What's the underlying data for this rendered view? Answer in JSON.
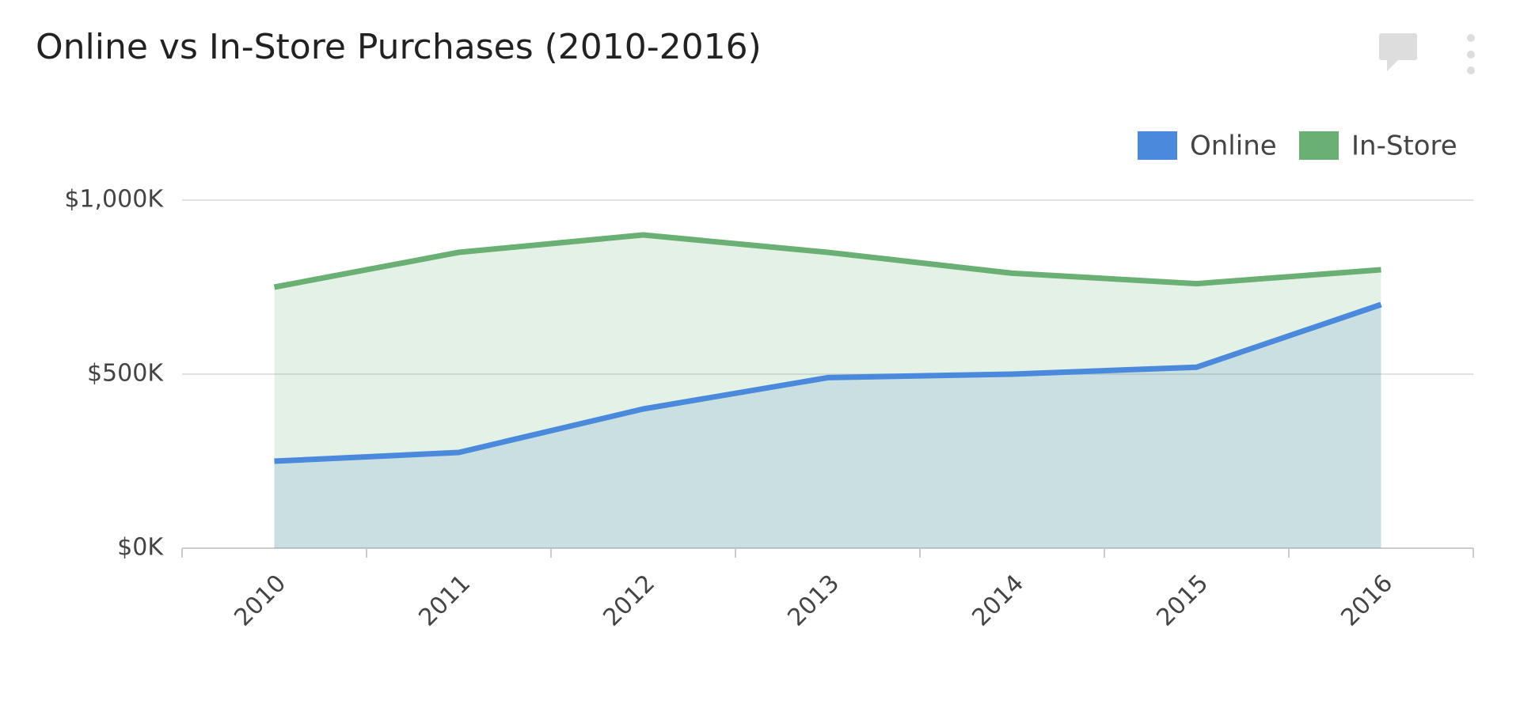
{
  "chart_data": {
    "type": "area",
    "title": "Online vs In-Store Purchases (2010-2016)",
    "categories": [
      "2010",
      "2011",
      "2012",
      "2013",
      "2014",
      "2015",
      "2016"
    ],
    "series": [
      {
        "name": "Online",
        "color": "#4a89dc",
        "values": [
          250000,
          275000,
          400000,
          490000,
          500000,
          520000,
          700000
        ]
      },
      {
        "name": "In-Store",
        "color": "#6aaf74",
        "values": [
          750000,
          850000,
          900000,
          850000,
          790000,
          760000,
          800000
        ]
      }
    ],
    "ylim": [
      0,
      1000000
    ],
    "yticks": [
      {
        "value": 0,
        "label": "$0K"
      },
      {
        "value": 500000,
        "label": "$500K"
      },
      {
        "value": 1000000,
        "label": "$1,000K"
      }
    ],
    "grid": true,
    "legend": "top-right"
  }
}
